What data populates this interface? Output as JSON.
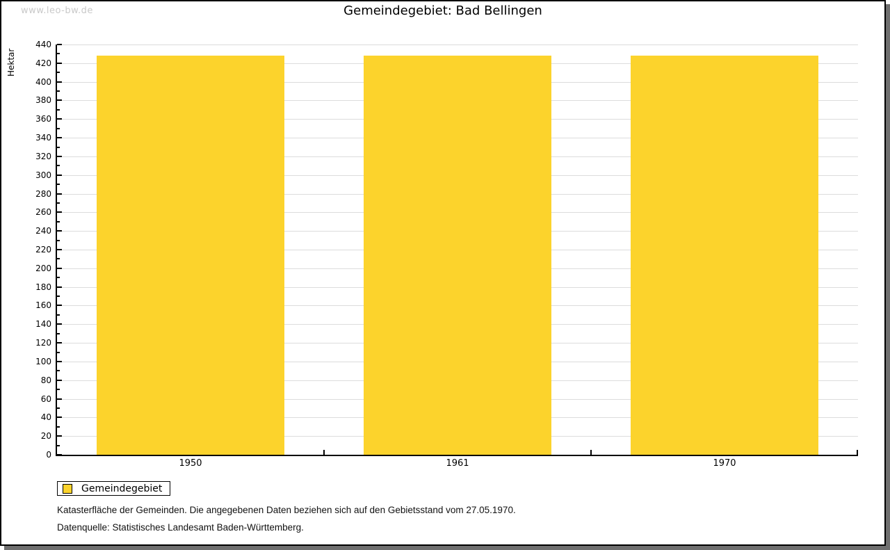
{
  "watermark": "www.leo-bw.de",
  "title": "Gemeindegebiet: Bad Bellingen",
  "chart_data": {
    "type": "bar",
    "title": "Gemeindegebiet: Bad Bellingen",
    "categories": [
      "1950",
      "1961",
      "1970"
    ],
    "series": [
      {
        "name": "Gemeindegebiet",
        "values": [
          428,
          428,
          428
        ]
      }
    ],
    "xlabel": "",
    "ylabel": "Hektar",
    "ylim": [
      0,
      440
    ],
    "ytick_step": 20,
    "minor_tick_step": 10,
    "grid": true,
    "legend_position": "bottom-left",
    "bar_color": "#fcd32c"
  },
  "legend": {
    "items": [
      {
        "label": "Gemeindegebiet",
        "color": "#fcd32c"
      }
    ]
  },
  "notes": {
    "line1": "Katasterfläche der Gemeinden. Die angegebenen Daten beziehen sich auf den Gebietsstand vom 27.05.1970.",
    "line2": "Datenquelle: Statistisches Landesamt Baden-Württemberg."
  },
  "colors": {
    "bar": "#fcd32c",
    "gridline": "#dcdcdc",
    "axis": "#000000",
    "watermark": "#c9c9c9",
    "shadow": "#6f6f6f"
  }
}
